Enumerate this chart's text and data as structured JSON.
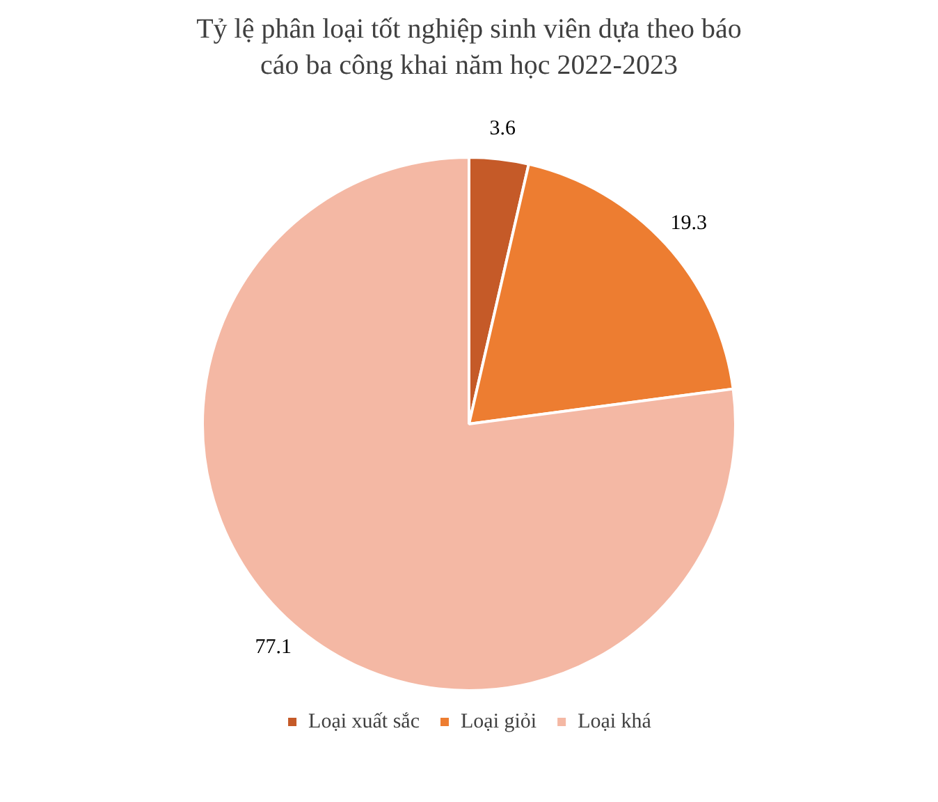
{
  "chart_data": {
    "type": "pie",
    "title": "Tỷ lệ phân loại tốt nghiệp sinh viên dựa theo báo cáo ba công khai năm học 2022-2023",
    "categories": [
      "Loại xuất sắc",
      "Loại giỏi",
      "Loại khá"
    ],
    "values": [
      3.6,
      19.3,
      77.1
    ],
    "colors": [
      "#c55a28",
      "#ed7d31",
      "#f4b8a4"
    ],
    "data_labels": true,
    "legend": "bottom"
  }
}
